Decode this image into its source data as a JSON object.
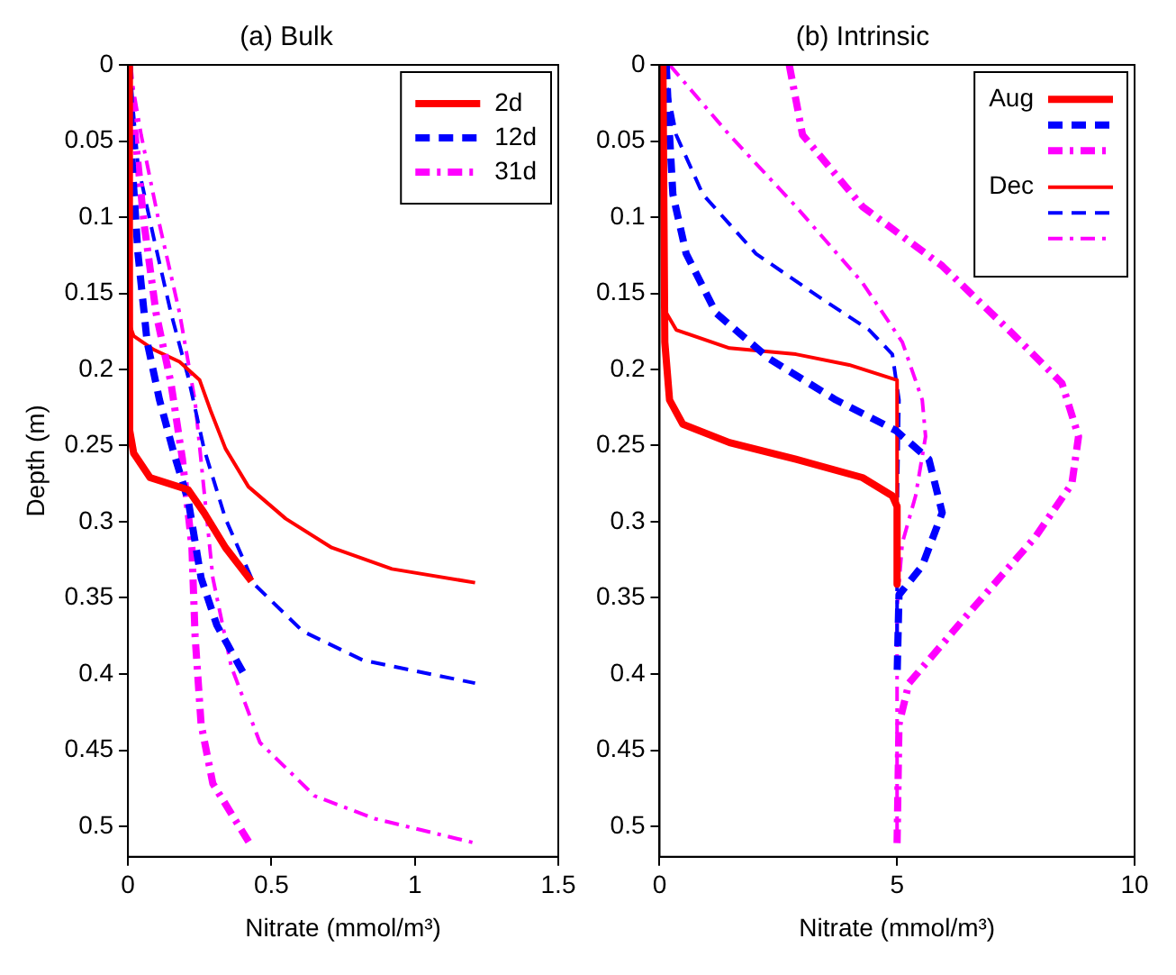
{
  "chart_data": [
    {
      "type": "line",
      "title": "(a) Bulk",
      "xlabel": "Nitrate (mmol/m³)",
      "ylabel": "Depth (m)",
      "xlim": [
        0,
        1.5
      ],
      "xticks": [
        0,
        0.5,
        1,
        1.5
      ],
      "ylim": [
        0.52,
        0
      ],
      "yticks": [
        0,
        0.05,
        0.1,
        0.15,
        0.2,
        0.25,
        0.3,
        0.35,
        0.4,
        0.45,
        0.5
      ],
      "grid": false,
      "legend": "top right",
      "marker": "none",
      "series": [
        {
          "name": "2d",
          "color": "#ff0000",
          "line_style": "solid",
          "x": [
            0.004,
            0.005,
            0.006,
            0.02,
            0.077,
            0.21,
            0.265,
            0.34,
            0.43
          ],
          "values": [
            0,
            0.12,
            0.24,
            0.255,
            0.271,
            0.279,
            0.294,
            0.317,
            0.339
          ]
        },
        {
          "name": "12d",
          "color": "#0000ff",
          "line_style": "dashed",
          "x": [
            0.004,
            0.015,
            0.035,
            0.067,
            0.11,
            0.16,
            0.21,
            0.255,
            0.31,
            0.41
          ],
          "values": [
            0,
            0.066,
            0.124,
            0.182,
            0.22,
            0.255,
            0.286,
            0.337,
            0.368,
            0.402
          ]
        },
        {
          "name": "31d",
          "color": "#ff00ff",
          "line_style": "dashdot",
          "x": [
            0.004,
            0.025,
            0.056,
            0.098,
            0.15,
            0.19,
            0.223,
            0.234,
            0.255,
            0.296,
            0.43
          ],
          "values": [
            0,
            0.046,
            0.104,
            0.163,
            0.209,
            0.259,
            0.317,
            0.375,
            0.433,
            0.472,
            0.513
          ]
        },
        {
          "color": "#ff0000",
          "line_style": "solid",
          "x": [
            0.004,
            0.005,
            0.02,
            0.09,
            0.18,
            0.25,
            0.29,
            0.34,
            0.42,
            0.55,
            0.71,
            0.92,
            1.21
          ],
          "values": [
            0,
            0.17,
            0.178,
            0.187,
            0.195,
            0.207,
            0.228,
            0.252,
            0.277,
            0.298,
            0.317,
            0.331,
            0.34
          ]
        },
        {
          "color": "#0000ff",
          "line_style": "dashed",
          "x": [
            0.004,
            0.035,
            0.088,
            0.15,
            0.21,
            0.265,
            0.34,
            0.44,
            0.61,
            0.82,
            1.21
          ],
          "values": [
            0,
            0.066,
            0.112,
            0.163,
            0.205,
            0.252,
            0.298,
            0.341,
            0.372,
            0.391,
            0.406
          ]
        },
        {
          "color": "#ff00ff",
          "line_style": "dashdot",
          "x": [
            0.004,
            0.046,
            0.109,
            0.18,
            0.234,
            0.265,
            0.296,
            0.36,
            0.46,
            0.65,
            0.86,
            1.21
          ],
          "values": [
            0,
            0.046,
            0.104,
            0.163,
            0.221,
            0.279,
            0.337,
            0.395,
            0.445,
            0.48,
            0.495,
            0.511
          ]
        }
      ]
    },
    {
      "type": "line",
      "title": "(b) Intrinsic",
      "xlabel": "Nitrate (mmol/m³)",
      "xlim": [
        0,
        10
      ],
      "xticks": [
        0,
        5,
        10
      ],
      "ylim": [
        0.52,
        0
      ],
      "yticks": [
        0,
        0.05,
        0.1,
        0.15,
        0.2,
        0.25,
        0.3,
        0.35,
        0.4,
        0.45,
        0.5
      ],
      "grid": false,
      "legend": "top right",
      "marker": "none",
      "series": [
        {
          "name": "Aug",
          "color": "#ff0000",
          "line_style": "solid",
          "x": [
            0.07,
            0.11,
            0.21,
            0.49,
            1.47,
            2.87,
            4.27,
            4.9,
            5,
            5
          ],
          "values": [
            0,
            0.182,
            0.22,
            0.236,
            0.248,
            0.259,
            0.271,
            0.283,
            0.29,
            0.341
          ]
        },
        {
          "color": "#0000ff",
          "line_style": "dashed",
          "x": [
            0.14,
            0.21,
            0.28,
            0.56,
            1.19,
            2.31,
            3.71,
            4.97,
            5.67,
            5.95,
            5.53,
            5.04,
            5
          ],
          "values": [
            0,
            0.046,
            0.085,
            0.124,
            0.163,
            0.193,
            0.22,
            0.24,
            0.259,
            0.294,
            0.329,
            0.348,
            0.402
          ]
        },
        {
          "color": "#ff00ff",
          "line_style": "dashdot",
          "x": [
            2.73,
            3.01,
            4.27,
            5.95,
            7.35,
            8.47,
            8.82,
            8.68,
            7.91,
            6.51,
            5.25,
            5.04,
            5
          ],
          "values": [
            0,
            0.046,
            0.093,
            0.132,
            0.174,
            0.209,
            0.244,
            0.275,
            0.31,
            0.36,
            0.406,
            0.433,
            0.511
          ]
        },
        {
          "name": "Dec",
          "color": "#ff0000",
          "line_style": "solid",
          "x": [
            0.07,
            0.07,
            0.35,
            1.47,
            2.87,
            3.99,
            5,
            5
          ],
          "values": [
            0,
            0.159,
            0.174,
            0.186,
            0.19,
            0.197,
            0.207,
            0.337
          ]
        },
        {
          "color": "#0000ff",
          "line_style": "dashed",
          "x": [
            0.07,
            0.35,
            0.91,
            2.03,
            3.29,
            4.41,
            4.9,
            5.04,
            5,
            5
          ],
          "values": [
            0,
            0.046,
            0.085,
            0.124,
            0.151,
            0.174,
            0.19,
            0.22,
            0.298,
            0.375
          ]
        },
        {
          "color": "#ff00ff",
          "line_style": "dashdot",
          "x": [
            0.21,
            1.47,
            2.87,
            4.27,
            5.11,
            5.53,
            5.6,
            5.39,
            5.11,
            5,
            5
          ],
          "values": [
            0,
            0.046,
            0.093,
            0.143,
            0.182,
            0.22,
            0.244,
            0.283,
            0.314,
            0.356,
            0.511
          ]
        }
      ]
    }
  ]
}
